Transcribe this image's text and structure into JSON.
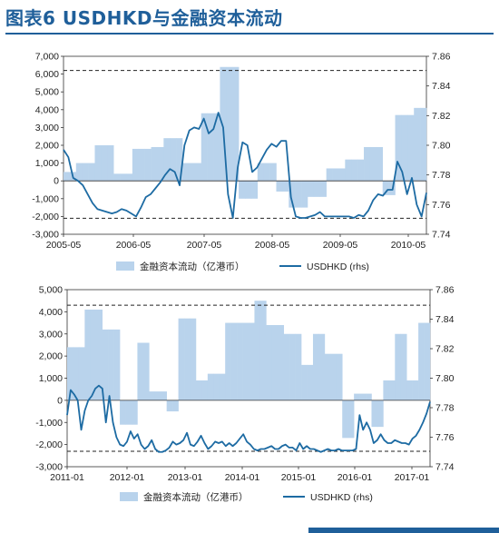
{
  "title": "图表6  USDHKD与金融资本流动",
  "colors": {
    "bar": "#b9d3ec",
    "line": "#1d6ba3",
    "dashed": "#222222",
    "axis": "#333333",
    "title": "#1f5f9a"
  },
  "chart_data": [
    {
      "type": "bar+line",
      "x_tick_labels": [
        "2005-05",
        "2006-05",
        "2007-05",
        "2008-05",
        "2009-05",
        "2010-05"
      ],
      "y_left": {
        "min": -3000,
        "max": 7000,
        "ticks": [
          "-3,000",
          "-2,000",
          "-1,000",
          "0",
          "1,000",
          "2,000",
          "3,000",
          "4,000",
          "5,000",
          "6,000",
          "7,000"
        ]
      },
      "y_right": {
        "min": 7.74,
        "max": 7.86,
        "ticks": [
          "7.74",
          "7.76",
          "7.78",
          "7.80",
          "7.82",
          "7.84",
          "7.86"
        ]
      },
      "dashed_lines_left": [
        6200,
        -2100
      ],
      "series": [
        {
          "name": "金融资本流动（亿港币）",
          "kind": "bar",
          "axis": "left",
          "values": [
            500,
            500,
            1000,
            1000,
            1000,
            2000,
            2000,
            2000,
            400,
            400,
            400,
            1800,
            1800,
            1800,
            1900,
            1900,
            2400,
            2400,
            2400,
            1000,
            1000,
            1000,
            3800,
            3800,
            3800,
            6400,
            6400,
            6400,
            -1000,
            -1000,
            -1000,
            1000,
            1000,
            1000,
            -600,
            -600,
            -1500,
            -1500,
            -1500,
            -900,
            -900,
            -900,
            700,
            700,
            700,
            1200,
            1200,
            1200,
            1900,
            1900,
            1900,
            -800,
            -800,
            3700,
            3700,
            3700,
            4100,
            4100
          ]
        },
        {
          "name": "USDHKD (rhs)",
          "kind": "line",
          "axis": "right",
          "values": [
            7.797,
            7.792,
            7.778,
            7.776,
            7.773,
            7.767,
            7.761,
            7.757,
            7.756,
            7.755,
            7.754,
            7.755,
            7.757,
            7.756,
            7.754,
            7.752,
            7.758,
            7.765,
            7.767,
            7.771,
            7.775,
            7.78,
            7.784,
            7.782,
            7.773,
            7.8,
            7.81,
            7.812,
            7.811,
            7.818,
            7.808,
            7.811,
            7.822,
            7.812,
            7.767,
            7.751,
            7.785,
            7.802,
            7.8,
            7.782,
            7.785,
            7.791,
            7.797,
            7.801,
            7.799,
            7.803,
            7.803,
            7.765,
            7.752,
            7.751,
            7.751,
            7.752,
            7.753,
            7.755,
            7.752,
            7.752,
            7.752,
            7.752,
            7.752,
            7.752,
            7.751,
            7.753,
            7.752,
            7.756,
            7.763,
            7.767,
            7.766,
            7.77,
            7.77,
            7.789,
            7.782,
            7.767,
            7.778,
            7.76,
            7.752,
            7.768
          ]
        }
      ],
      "legend": {
        "bar_label": "金融资本流动（亿港币）",
        "line_label": "USDHKD (rhs)",
        "position": "bottom"
      }
    },
    {
      "type": "bar+line",
      "x_tick_labels": [
        "2011-01",
        "2012-01",
        "2013-01",
        "2014-01",
        "2015-01",
        "2016-01",
        "2017-01"
      ],
      "y_left": {
        "min": -3000,
        "max": 5000,
        "ticks": [
          "-3,000",
          "-2,000",
          "-1,000",
          "0",
          "1,000",
          "2,000",
          "3,000",
          "4,000",
          "5,000"
        ]
      },
      "y_right": {
        "min": 7.74,
        "max": 7.86,
        "ticks": [
          "7.74",
          "7.76",
          "7.78",
          "7.80",
          "7.82",
          "7.84",
          "7.86"
        ]
      },
      "dashed_lines_left": [
        4300,
        -2300
      ],
      "series": [
        {
          "name": "金融资本流动（亿港币）",
          "kind": "bar",
          "axis": "left",
          "values": [
            2400,
            2400,
            2400,
            4100,
            4100,
            4100,
            3200,
            3200,
            3200,
            -1100,
            -1100,
            -1100,
            2600,
            2600,
            400,
            400,
            400,
            -500,
            -500,
            3700,
            3700,
            3700,
            900,
            900,
            1200,
            1200,
            1200,
            3500,
            3500,
            3500,
            3500,
            3500,
            4500,
            4500,
            3400,
            3400,
            3400,
            3000,
            3000,
            3000,
            1600,
            1600,
            3000,
            3000,
            2100,
            2100,
            2100,
            -1700,
            -1700,
            300,
            300,
            300,
            -1200,
            -1200,
            900,
            900,
            3000,
            3000,
            900,
            900,
            3500,
            3500
          ]
        },
        {
          "name": "USDHKD (rhs)",
          "kind": "line",
          "axis": "right",
          "values": [
            7.775,
            7.792,
            7.789,
            7.785,
            7.765,
            7.778,
            7.785,
            7.788,
            7.793,
            7.795,
            7.793,
            7.77,
            7.788,
            7.77,
            7.76,
            7.755,
            7.754,
            7.757,
            7.764,
            7.759,
            7.762,
            7.755,
            7.752,
            7.754,
            7.758,
            7.752,
            7.75,
            7.75,
            7.751,
            7.753,
            7.757,
            7.755,
            7.756,
            7.758,
            7.763,
            7.755,
            7.754,
            7.757,
            7.761,
            7.756,
            7.752,
            7.754,
            7.757,
            7.756,
            7.757,
            7.754,
            7.756,
            7.754,
            7.756,
            7.759,
            7.762,
            7.757,
            7.755,
            7.752,
            7.751,
            7.752,
            7.752,
            7.753,
            7.754,
            7.752,
            7.752,
            7.754,
            7.755,
            7.753,
            7.753,
            7.751,
            7.756,
            7.752,
            7.754,
            7.752,
            7.752,
            7.751,
            7.75,
            7.751,
            7.752,
            7.751,
            7.751,
            7.752,
            7.751,
            7.751,
            7.751,
            7.751,
            7.752,
            7.775,
            7.765,
            7.77,
            7.765,
            7.756,
            7.758,
            7.762,
            7.758,
            7.756,
            7.756,
            7.758,
            7.757,
            7.756,
            7.756,
            7.755,
            7.759,
            7.761,
            7.765,
            7.77,
            7.776,
            7.784
          ]
        }
      ],
      "legend": {
        "bar_label": "金融资本流动（亿港币）",
        "line_label": "USDHKD (rhs)",
        "position": "bottom"
      }
    }
  ]
}
